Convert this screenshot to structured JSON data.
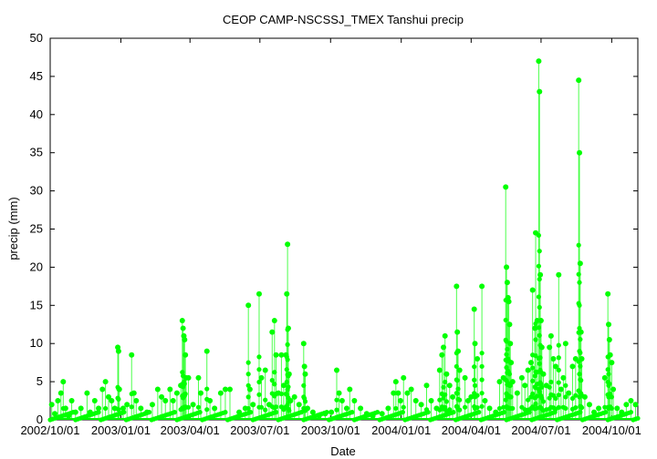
{
  "chart_data": {
    "type": "scatter",
    "title": "CEOP CAMP-NSCSSJ_TMEX Tanshui  precip",
    "xlabel": "Date",
    "ylabel": "precip (mm)",
    "ylim": [
      0,
      50
    ],
    "yticks": [
      0,
      5,
      10,
      15,
      20,
      25,
      30,
      35,
      40,
      45,
      50
    ],
    "xlim": [
      0,
      765
    ],
    "xtick_labels": [
      "2002/10/01",
      "2003/01/01",
      "2003/04/01",
      "2003/07/01",
      "2003/10/01",
      "2004/01/01",
      "2004/04/01",
      "2004/07/01",
      "2004/10/01"
    ],
    "xtick_positions": [
      0,
      92,
      182,
      273,
      365,
      457,
      548,
      639,
      731
    ],
    "grid": false,
    "color": "#00ff00",
    "series": [
      {
        "name": "precip",
        "note": "x = days since 2002/10/01; y = precip (mm); spikes drawn as vertical lines to points",
        "points": [
          [
            2,
            2.0
          ],
          [
            6,
            0.8
          ],
          [
            10,
            2.5
          ],
          [
            14,
            3.5
          ],
          [
            17,
            5.0
          ],
          [
            20,
            1.5
          ],
          [
            24,
            0.5
          ],
          [
            28,
            2.5
          ],
          [
            33,
            1.0
          ],
          [
            40,
            1.5
          ],
          [
            48,
            3.5
          ],
          [
            52,
            1.0
          ],
          [
            58,
            2.5
          ],
          [
            63,
            1.5
          ],
          [
            68,
            4.0
          ],
          [
            72,
            5.0
          ],
          [
            76,
            3.0
          ],
          [
            80,
            2.5
          ],
          [
            84,
            1.5
          ],
          [
            88,
            9.5
          ],
          [
            89,
            9.0
          ],
          [
            90,
            4.0
          ],
          [
            95,
            1.5
          ],
          [
            100,
            2.0
          ],
          [
            106,
            8.5
          ],
          [
            109,
            3.5
          ],
          [
            112,
            2.5
          ],
          [
            118,
            1.5
          ],
          [
            126,
            1.0
          ],
          [
            133,
            2.0
          ],
          [
            140,
            4.0
          ],
          [
            145,
            3.0
          ],
          [
            150,
            2.5
          ],
          [
            156,
            4.0
          ],
          [
            160,
            2.5
          ],
          [
            165,
            3.5
          ],
          [
            170,
            4.5
          ],
          [
            172,
            13.0
          ],
          [
            173,
            12.0
          ],
          [
            174,
            11.0
          ],
          [
            175,
            10.5
          ],
          [
            176,
            8.5
          ],
          [
            177,
            5.5
          ],
          [
            180,
            5.5
          ],
          [
            186,
            2.0
          ],
          [
            193,
            5.5
          ],
          [
            196,
            3.5
          ],
          [
            204,
            9.0
          ],
          [
            208,
            2.5
          ],
          [
            214,
            1.5
          ],
          [
            222,
            3.5
          ],
          [
            228,
            4.0
          ],
          [
            234,
            4.0
          ],
          [
            246,
            1.0
          ],
          [
            254,
            1.5
          ],
          [
            258,
            15.0
          ],
          [
            260,
            4.0
          ],
          [
            264,
            2.0
          ],
          [
            272,
            16.5
          ],
          [
            275,
            5.5
          ],
          [
            280,
            6.5
          ],
          [
            285,
            2.0
          ],
          [
            289,
            11.5
          ],
          [
            292,
            13.0
          ],
          [
            294,
            8.5
          ],
          [
            297,
            3.5
          ],
          [
            301,
            8.5
          ],
          [
            304,
            4.5
          ],
          [
            307,
            8.5
          ],
          [
            308,
            16.5
          ],
          [
            309,
            23.0
          ],
          [
            310,
            12.0
          ],
          [
            311,
            6.0
          ],
          [
            313,
            2.5
          ],
          [
            318,
            3.0
          ],
          [
            324,
            2.0
          ],
          [
            330,
            10.0
          ],
          [
            331,
            7.0
          ],
          [
            332,
            6.0
          ],
          [
            335,
            1.5
          ],
          [
            342,
            1.0
          ],
          [
            350,
            0.5
          ],
          [
            358,
            0.8
          ],
          [
            366,
            1.0
          ],
          [
            373,
            6.5
          ],
          [
            376,
            3.5
          ],
          [
            380,
            2.5
          ],
          [
            386,
            1.5
          ],
          [
            390,
            4.0
          ],
          [
            396,
            2.5
          ],
          [
            404,
            1.5
          ],
          [
            412,
            0.8
          ],
          [
            420,
            0.5
          ],
          [
            432,
            0.8
          ],
          [
            440,
            1.5
          ],
          [
            447,
            3.5
          ],
          [
            450,
            5.0
          ],
          [
            453,
            3.5
          ],
          [
            456,
            2.5
          ],
          [
            460,
            5.5
          ],
          [
            465,
            3.5
          ],
          [
            470,
            4.0
          ],
          [
            476,
            2.5
          ],
          [
            483,
            2.0
          ],
          [
            490,
            4.5
          ],
          [
            496,
            2.5
          ],
          [
            503,
            1.5
          ],
          [
            507,
            6.5
          ],
          [
            510,
            8.5
          ],
          [
            512,
            9.5
          ],
          [
            514,
            11.0
          ],
          [
            516,
            6.0
          ],
          [
            520,
            4.5
          ],
          [
            524,
            3.0
          ],
          [
            529,
            17.5
          ],
          [
            530,
            11.5
          ],
          [
            531,
            9.0
          ],
          [
            533,
            6.5
          ],
          [
            540,
            5.5
          ],
          [
            544,
            2.5
          ],
          [
            548,
            3.0
          ],
          [
            552,
            14.5
          ],
          [
            553,
            10.0
          ],
          [
            556,
            8.0
          ],
          [
            562,
            17.5
          ],
          [
            566,
            2.5
          ],
          [
            572,
            1.5
          ],
          [
            580,
            1.0
          ],
          [
            585,
            5.0
          ],
          [
            590,
            5.5
          ],
          [
            593,
            30.5
          ],
          [
            594,
            20.0
          ],
          [
            595,
            18.0
          ],
          [
            596,
            16.0
          ],
          [
            597,
            15.5
          ],
          [
            598,
            12.5
          ],
          [
            599,
            10.0
          ],
          [
            600,
            7.5
          ],
          [
            602,
            5.0
          ],
          [
            608,
            3.5
          ],
          [
            614,
            5.5
          ],
          [
            618,
            4.5
          ],
          [
            622,
            6.5
          ],
          [
            626,
            7.5
          ],
          [
            628,
            17.0
          ],
          [
            631,
            12.0
          ],
          [
            632,
            24.5
          ],
          [
            634,
            13.0
          ],
          [
            636,
            47.0
          ],
          [
            637,
            43.0
          ],
          [
            638,
            19.0
          ],
          [
            639,
            13.0
          ],
          [
            640,
            9.5
          ],
          [
            642,
            6.0
          ],
          [
            646,
            4.5
          ],
          [
            650,
            9.5
          ],
          [
            652,
            11.0
          ],
          [
            655,
            8.0
          ],
          [
            658,
            7.0
          ],
          [
            662,
            19.0
          ],
          [
            665,
            4.0
          ],
          [
            668,
            5.5
          ],
          [
            671,
            10.0
          ],
          [
            675,
            3.5
          ],
          [
            680,
            7.0
          ],
          [
            684,
            8.0
          ],
          [
            688,
            44.5
          ],
          [
            689,
            35.0
          ],
          [
            690,
            20.5
          ],
          [
            691,
            11.5
          ],
          [
            692,
            8.0
          ],
          [
            696,
            3.0
          ],
          [
            702,
            2.0
          ],
          [
            708,
            1.0
          ],
          [
            714,
            1.5
          ],
          [
            722,
            5.5
          ],
          [
            726,
            16.5
          ],
          [
            727,
            12.5
          ],
          [
            728,
            10.5
          ],
          [
            729,
            8.5
          ],
          [
            731,
            7.5
          ],
          [
            733,
            4.0
          ],
          [
            738,
            1.5
          ],
          [
            744,
            1.0
          ],
          [
            750,
            2.0
          ],
          [
            756,
            2.5
          ],
          [
            762,
            2.0
          ]
        ]
      }
    ]
  }
}
